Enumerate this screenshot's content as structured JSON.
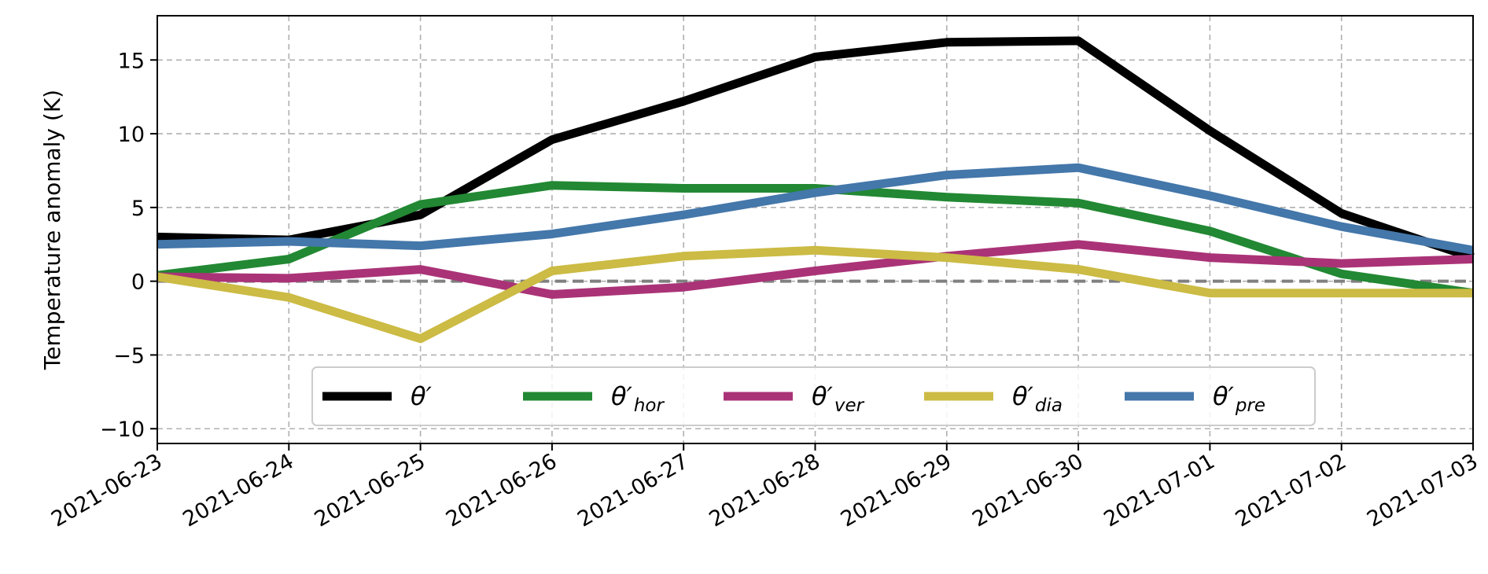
{
  "chart_data": {
    "type": "line",
    "title": "",
    "xlabel": "",
    "ylabel": "Temperature anomaly (K)",
    "x": [
      "2021-06-23",
      "2021-06-24",
      "2021-06-25",
      "2021-06-26",
      "2021-06-27",
      "2021-06-28",
      "2021-06-29",
      "2021-06-30",
      "2021-07-01",
      "2021-07-02",
      "2021-07-03"
    ],
    "ylim": [
      -11,
      18
    ],
    "yticks": [
      -10,
      -5,
      0,
      5,
      10,
      15
    ],
    "ytick_labels": [
      "−10",
      "−5",
      "0",
      "5",
      "10",
      "15"
    ],
    "grid": true,
    "zero_line": true,
    "legend_placement": "lower-center",
    "series": [
      {
        "name": "θ′",
        "label_base": "θ′",
        "label_sub": "",
        "color": "#000000",
        "values": [
          3.0,
          2.8,
          4.5,
          9.6,
          12.2,
          15.2,
          16.2,
          16.3,
          10.2,
          4.6,
          1.6
        ]
      },
      {
        "name": "θ′hor",
        "label_base": "θ′",
        "label_sub": "hor",
        "color": "#228833",
        "values": [
          0.4,
          1.5,
          5.2,
          6.5,
          6.3,
          6.3,
          5.7,
          5.3,
          3.4,
          0.5,
          -0.8
        ]
      },
      {
        "name": "θ′ver",
        "label_base": "θ′",
        "label_sub": "ver",
        "color": "#aa3377",
        "values": [
          0.3,
          0.2,
          0.8,
          -0.9,
          -0.4,
          0.7,
          1.7,
          2.5,
          1.6,
          1.2,
          1.5
        ]
      },
      {
        "name": "θ′dia",
        "label_base": "θ′",
        "label_sub": "dia",
        "color": "#ccbb44",
        "values": [
          0.3,
          -1.1,
          -3.9,
          0.7,
          1.7,
          2.1,
          1.6,
          0.8,
          -0.8,
          -0.8,
          -0.8
        ]
      },
      {
        "name": "θ′pre",
        "label_base": "θ′",
        "label_sub": "pre",
        "color": "#4477aa",
        "values": [
          2.5,
          2.7,
          2.4,
          3.2,
          4.5,
          6.0,
          7.2,
          7.7,
          5.8,
          3.7,
          2.1
        ]
      }
    ]
  }
}
